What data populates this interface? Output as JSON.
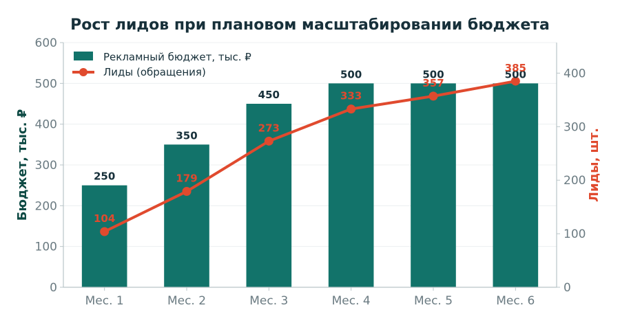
{
  "chart_data": {
    "type": "bar",
    "title": "Рост лидов при плановом масштабировании бюджета",
    "categories": [
      "Мес. 1",
      "Мес. 2",
      "Мес. 3",
      "Мес. 4",
      "Мес. 5",
      "Мес. 6"
    ],
    "series": [
      {
        "name": "Рекламный бюджет, тыс. ₽",
        "type": "bar",
        "axis": "left",
        "values": [
          250,
          350,
          450,
          500,
          500,
          500
        ],
        "labels": [
          "250",
          "350",
          "450",
          "500",
          "500",
          "500"
        ],
        "color": "#12736a"
      },
      {
        "name": "Лиды (обращения)",
        "type": "line",
        "axis": "right",
        "values": [
          104,
          179,
          273,
          333,
          357,
          385
        ],
        "labels": [
          "104",
          "179",
          "273",
          "333",
          "357",
          "385"
        ],
        "color": "#e04a2e"
      }
    ],
    "ylabel": "Бюджет, тыс. ₽",
    "ylim": [
      0,
      600
    ],
    "yticks": [
      "0",
      "100",
      "200",
      "300",
      "400",
      "500",
      "600"
    ],
    "y2label": "Лиды, шт.",
    "y2lim": [
      0,
      457
    ],
    "y2ticks": [
      "0",
      "100",
      "200",
      "300",
      "400"
    ],
    "grid": true,
    "legend": "top-left"
  }
}
